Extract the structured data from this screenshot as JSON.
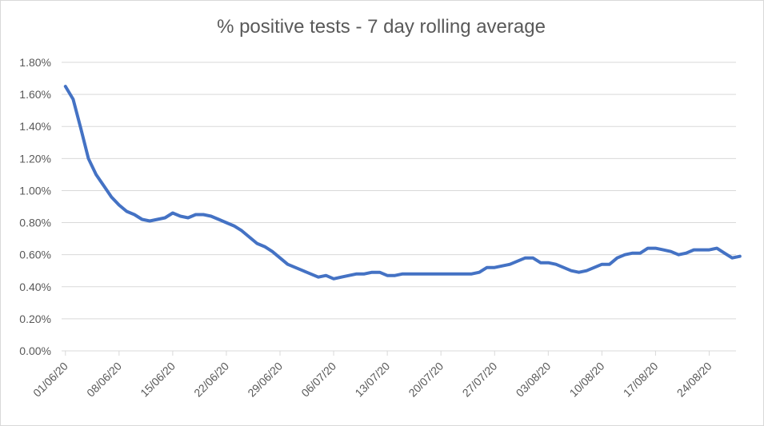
{
  "chart_data": {
    "type": "line",
    "title": "% positive tests - 7 day rolling average",
    "xlabel": "",
    "ylabel": "",
    "ylim": [
      0,
      0.018
    ],
    "y_ticks": [
      "0.00%",
      "0.20%",
      "0.40%",
      "0.60%",
      "0.80%",
      "1.00%",
      "1.20%",
      "1.40%",
      "1.60%",
      "1.80%"
    ],
    "x_ticks": [
      "01/06/20",
      "08/06/20",
      "15/06/20",
      "22/06/20",
      "29/06/20",
      "06/07/20",
      "13/07/20",
      "20/07/20",
      "27/07/20",
      "03/08/20",
      "10/08/20",
      "17/08/20",
      "24/08/20"
    ],
    "x_start": "2020-06-01",
    "x_end": "2020-08-27",
    "grid": true,
    "legend": "none",
    "line_color": "#4472C4",
    "series": [
      {
        "values": [
          0.0165,
          0.0157,
          0.0139,
          0.012,
          0.011,
          0.0103,
          0.0096,
          0.0091,
          0.0087,
          0.0085,
          0.0082,
          0.0081,
          0.0082,
          0.0083,
          0.0086,
          0.0084,
          0.0083,
          0.0085,
          0.0085,
          0.0084,
          0.0082,
          0.008,
          0.0078,
          0.0075,
          0.0071,
          0.0067,
          0.0065,
          0.0062,
          0.0058,
          0.0054,
          0.0052,
          0.005,
          0.0048,
          0.0046,
          0.0047,
          0.0045,
          0.0046,
          0.0047,
          0.0048,
          0.0048,
          0.0049,
          0.0049,
          0.0047,
          0.0047,
          0.0048,
          0.0048,
          0.0048,
          0.0048,
          0.0048,
          0.0048,
          0.0048,
          0.0048,
          0.0048,
          0.0048,
          0.0049,
          0.0052,
          0.0052,
          0.0053,
          0.0054,
          0.0056,
          0.0058,
          0.0058,
          0.0055,
          0.0055,
          0.0054,
          0.0052,
          0.005,
          0.0049,
          0.005,
          0.0052,
          0.0054,
          0.0054,
          0.0058,
          0.006,
          0.0061,
          0.0061,
          0.0064,
          0.0064,
          0.0063,
          0.0062,
          0.006,
          0.0061,
          0.0063,
          0.0063,
          0.0063,
          0.0064,
          0.0061,
          0.0058,
          0.0059
        ]
      }
    ]
  }
}
